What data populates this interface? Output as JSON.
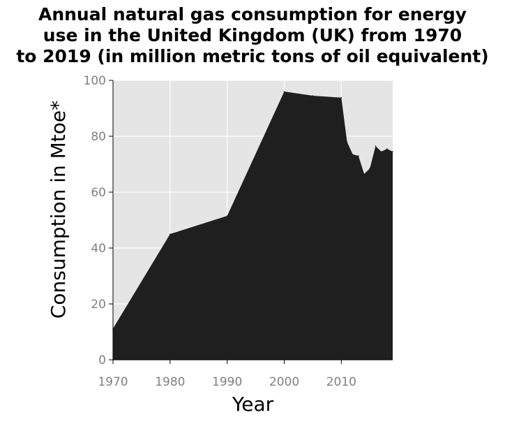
{
  "chart_data": {
    "type": "area",
    "title_lines": [
      "Annual natural gas consumption for energy",
      "use in the United Kingdom (UK) from 1970",
      "to 2019 (in million metric tons of oil equivalent)"
    ],
    "xlabel": "Year",
    "ylabel": "Consumption in Mtoe*",
    "xlim": [
      1970,
      2019
    ],
    "ylim": [
      0,
      100
    ],
    "x_ticks": [
      1970,
      1980,
      1990,
      2000,
      2010
    ],
    "y_ticks": [
      0,
      20,
      40,
      60,
      80,
      100
    ],
    "grid": true,
    "legend": "none",
    "colors": {
      "fill": "#1f1f1f",
      "plot_background": "#e5e5e5",
      "grid": "#ffffff",
      "tick_label": "#808080",
      "axis_line": "#000000"
    },
    "x": [
      1970,
      1980,
      1990,
      2000,
      2005,
      2010,
      2011,
      2012,
      2013,
      2014,
      2015,
      2016,
      2017,
      2018,
      2019
    ],
    "values": [
      11.2,
      45.0,
      51.5,
      96.0,
      94.5,
      93.8,
      78.0,
      73.5,
      73.0,
      66.5,
      68.5,
      76.5,
      74.5,
      75.5,
      74.5
    ]
  }
}
